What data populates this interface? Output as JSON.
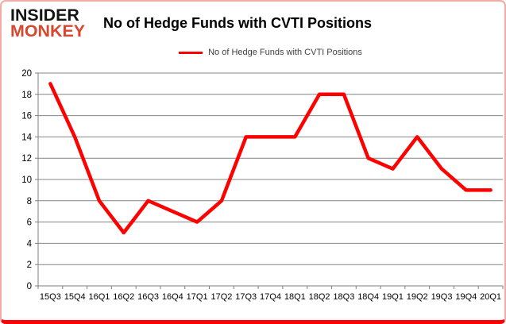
{
  "logo": {
    "line1": "INSIDER",
    "line2": "MONKEY",
    "line1_color": "#141414",
    "line2_color": "#d7472e"
  },
  "header": {
    "title": "No of Hedge Funds with CVTI Positions"
  },
  "legend": {
    "label": "No of Hedge Funds with CVTI Positions",
    "swatch_color": "#ff0000"
  },
  "frame": {
    "border_color": "#f2aca6",
    "bottom_border_color": "#fb0206",
    "background": "#ffffff"
  },
  "chart_data": {
    "type": "line",
    "title": "No of Hedge Funds with CVTI Positions",
    "categories": [
      "15Q3",
      "15Q4",
      "16Q1",
      "16Q2",
      "16Q3",
      "16Q4",
      "17Q1",
      "17Q2",
      "17Q3",
      "17Q4",
      "18Q1",
      "18Q2",
      "18Q3",
      "18Q4",
      "19Q1",
      "19Q2",
      "19Q3",
      "19Q4",
      "20Q1"
    ],
    "series": [
      {
        "name": "No of Hedge Funds with CVTI Positions",
        "color": "#ff0000",
        "values": [
          19,
          14,
          8,
          5,
          8,
          7,
          6,
          8,
          14,
          14,
          14,
          18,
          18,
          12,
          11,
          14,
          11,
          9,
          9
        ]
      }
    ],
    "ylim": [
      0,
      20
    ],
    "ytick_step": 2,
    "yticks": [
      0,
      2,
      4,
      6,
      8,
      10,
      12,
      14,
      16,
      18,
      20
    ],
    "grid": true,
    "gridline_color": "#848484",
    "axis_color": "#7f7f7f",
    "tick_label_color": "#000000",
    "legend_position": "top",
    "xlabel": "",
    "ylabel": ""
  }
}
